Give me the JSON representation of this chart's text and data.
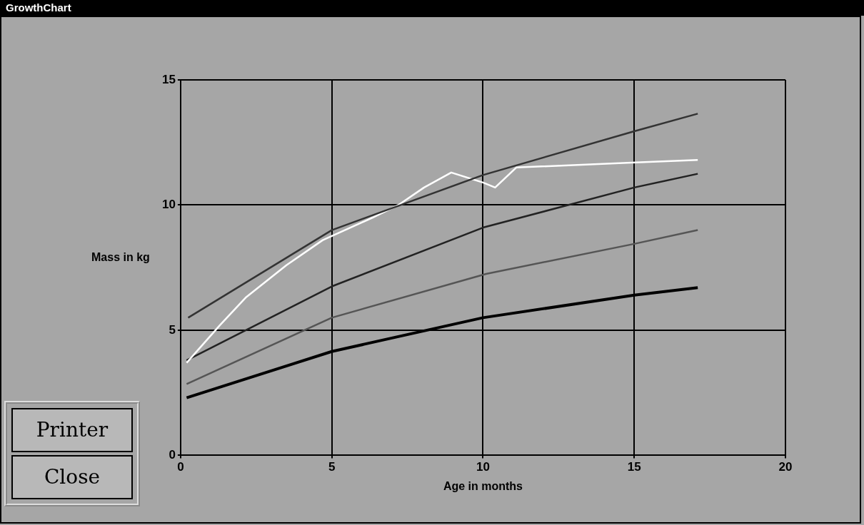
{
  "chart_data": {
    "type": "line",
    "title": "GrowthChart",
    "xlabel": "Age in months",
    "ylabel": "Mass in kg",
    "annotations": [
      "Printer",
      "Close"
    ],
    "xlim": [
      0,
      20
    ],
    "xticks": [
      0,
      5,
      10,
      15,
      20
    ],
    "ylim": [
      0,
      15
    ],
    "yticks": [
      0,
      5,
      10,
      15
    ],
    "grid": true,
    "legend": false,
    "marker": "none",
    "line_style": "solid",
    "series": [
      {
        "color": "#333333",
        "x": [
          0.25,
          5,
          10,
          15,
          17.1
        ],
        "values": [
          5.5,
          9.0,
          11.2,
          12.95,
          13.65
        ]
      },
      {
        "color": "#ffffff",
        "x": [
          0.2,
          1.3,
          2.15,
          3.5,
          4.7,
          6.35,
          7.2,
          8.05,
          8.95,
          10.0,
          10.4,
          11.1,
          15.05,
          17.1
        ],
        "values": [
          3.7,
          5.2,
          6.3,
          7.6,
          8.6,
          9.5,
          10.0,
          10.7,
          11.3,
          10.9,
          10.7,
          11.5,
          11.7,
          11.8
        ]
      },
      {
        "color": "#222222",
        "x": [
          0.2,
          5,
          10,
          15,
          17.1
        ],
        "values": [
          3.8,
          6.75,
          9.1,
          10.7,
          11.25
        ]
      },
      {
        "color": "#555555",
        "x": [
          0.2,
          5,
          10.1,
          15,
          17.1
        ],
        "values": [
          2.85,
          5.5,
          7.25,
          8.45,
          9.0
        ]
      },
      {
        "color": "#000000",
        "x": [
          0.2,
          5,
          10,
          15,
          17.1
        ],
        "values": [
          2.3,
          4.15,
          5.5,
          6.4,
          6.7
        ]
      }
    ]
  }
}
